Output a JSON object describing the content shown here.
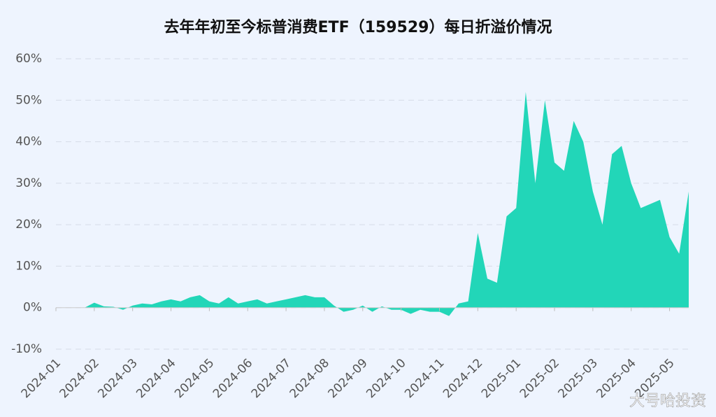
{
  "chart_data": {
    "type": "area",
    "title": "去年年初至今标普消费ETF（159529）每日折溢价情况",
    "watermark": "大号哈投资",
    "color": "#22d6b8",
    "grid": true,
    "categories": [
      "2024-01",
      null,
      null,
      null,
      "2024-02",
      null,
      null,
      null,
      "2024-03",
      null,
      null,
      null,
      "2024-04",
      null,
      null,
      null,
      "2024-05",
      null,
      null,
      null,
      "2024-06",
      null,
      null,
      null,
      "2024-07",
      null,
      null,
      null,
      "2024-08",
      null,
      null,
      null,
      "2024-09",
      null,
      null,
      null,
      "2024-10",
      null,
      null,
      null,
      "2024-11",
      null,
      null,
      null,
      "2024-12",
      null,
      null,
      null,
      "2025-01",
      null,
      null,
      null,
      "2025-02",
      null,
      null,
      null,
      "2025-03",
      null,
      null,
      null,
      "2025-04",
      null,
      null,
      null,
      "2025-05",
      null,
      null
    ],
    "values": [
      0,
      0,
      0,
      0,
      1.2,
      0.3,
      0.2,
      -0.5,
      0.5,
      1,
      0.8,
      1.5,
      2,
      1.5,
      2.5,
      3,
      1.5,
      1,
      2.5,
      1,
      1.5,
      2,
      1,
      1.5,
      2,
      2.5,
      3,
      2.5,
      2.5,
      0.5,
      -1,
      -0.5,
      0.5,
      -1,
      0.3,
      -0.5,
      -0.5,
      -1.5,
      -0.5,
      -1,
      -1,
      -2,
      1,
      1.5,
      18,
      7,
      6,
      22,
      24,
      52,
      30,
      50,
      35,
      33,
      45,
      40,
      28,
      20,
      37,
      39,
      30,
      24,
      25,
      26,
      17,
      13,
      28
    ],
    "ylim": [
      -10,
      60
    ],
    "yticks": [
      {
        "value": -10,
        "label": "-10%"
      },
      {
        "value": 0,
        "label": "0%"
      },
      {
        "value": 10,
        "label": "10%"
      },
      {
        "value": 20,
        "label": "20%"
      },
      {
        "value": 30,
        "label": "30%"
      },
      {
        "value": 40,
        "label": "40%"
      },
      {
        "value": 50,
        "label": "50%"
      },
      {
        "value": 60,
        "label": "60%"
      }
    ]
  }
}
